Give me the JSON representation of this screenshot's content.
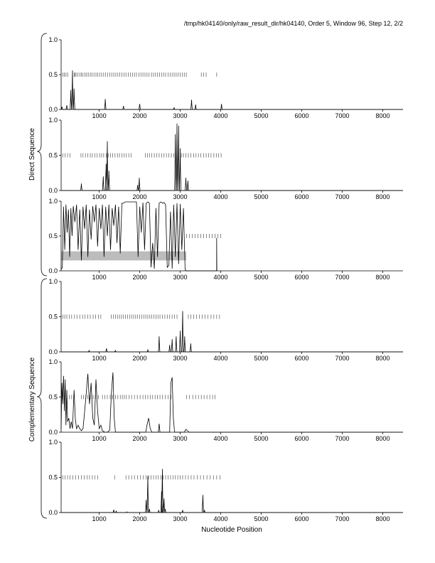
{
  "header": "/tmp/hk04140/only/raw_result_dir/hk04140, Order 5, Window 96, Step 12, 2/2",
  "group_labels": {
    "top": "Direct Sequence",
    "bottom": "Complementary Sequence"
  },
  "xlabel": "Nucleotide Position",
  "colors": {
    "line": "#000000",
    "band": "#bcbcbc",
    "marker": "#555555"
  },
  "chart_data": [
    {
      "type": "line",
      "xlim": [
        60,
        8500
      ],
      "ylim": [
        0,
        1
      ],
      "x_ticks": [
        1000,
        2000,
        3000,
        4000,
        5000,
        6000,
        7000,
        8000
      ],
      "y_ticks": [
        "0.0",
        "0.5",
        "1.0"
      ],
      "markers": [
        100,
        140,
        180,
        220,
        380,
        400,
        430,
        470,
        520,
        560,
        600,
        650,
        690,
        730,
        780,
        820,
        870,
        920,
        960,
        1010,
        1060,
        1110,
        1160,
        1210,
        1260,
        1310,
        1360,
        1410,
        1460,
        1510,
        1560,
        1610,
        1660,
        1720,
        1770,
        1820,
        1870,
        1920,
        1980,
        2030,
        2080,
        2130,
        2180,
        2230,
        2290,
        2340,
        2390,
        2440,
        2490,
        2540,
        2590,
        2640,
        2700,
        2750,
        2800,
        2850,
        2900,
        2950,
        3000,
        3050,
        3100,
        3150,
        3520,
        3580,
        3640,
        3900
      ],
      "peaks": [
        [
          80,
          0.04
        ],
        [
          200,
          0.06
        ],
        [
          300,
          0.28
        ],
        [
          340,
          0.56
        ],
        [
          380,
          0.3
        ],
        [
          1150,
          0.15
        ],
        [
          1600,
          0.05
        ],
        [
          2000,
          0.08
        ],
        [
          2850,
          0.03
        ],
        [
          3280,
          0.14
        ],
        [
          3380,
          0.07
        ],
        [
          4020,
          0.08
        ]
      ]
    },
    {
      "type": "line",
      "xlim": [
        60,
        8500
      ],
      "ylim": [
        0,
        1
      ],
      "x_ticks": [
        1000,
        2000,
        3000,
        4000,
        5000,
        6000,
        7000,
        8000
      ],
      "y_ticks": [
        "0.0",
        "0.5",
        "1.0"
      ],
      "markers": [
        100,
        160,
        220,
        280,
        550,
        600,
        660,
        720,
        780,
        830,
        890,
        950,
        1010,
        1060,
        1110,
        1170,
        1220,
        1280,
        1330,
        1390,
        1450,
        1500,
        1560,
        1610,
        1670,
        1730,
        1790,
        2140,
        2190,
        2240,
        2300,
        2360,
        2420,
        2480,
        2540,
        2600,
        2660,
        2720,
        2780,
        2840,
        3030,
        3080,
        3140,
        3200,
        3260,
        3330,
        3390,
        3450,
        3510,
        3580,
        3640,
        3700,
        3760,
        3830,
        3890,
        3950,
        4010
      ],
      "peaks": [
        [
          560,
          0.1
        ],
        [
          1100,
          0.2
        ],
        [
          1170,
          0.38
        ],
        [
          1200,
          0.7
        ],
        [
          1240,
          0.28
        ],
        [
          1950,
          0.08
        ],
        [
          1990,
          0.18
        ],
        [
          2880,
          0.8
        ],
        [
          2920,
          0.95
        ],
        [
          2960,
          0.92
        ],
        [
          3000,
          0.6
        ],
        [
          3140,
          0.18
        ],
        [
          3190,
          0.14
        ]
      ]
    },
    {
      "type": "line",
      "xlim": [
        60,
        8500
      ],
      "ylim": [
        0,
        1
      ],
      "x_ticks": [
        1000,
        2000,
        3000,
        4000,
        5000,
        6000,
        7000,
        8000
      ],
      "y_ticks": [
        "0.0",
        "0.5",
        "1.0"
      ],
      "markers": [
        3160,
        3230,
        3300,
        3370,
        3440,
        3510,
        3580,
        3650,
        3720,
        3790,
        3860,
        3930,
        4000
      ],
      "band": [
        0.15,
        0.28,
        60,
        3150
      ],
      "line": [
        [
          60,
          0.02
        ],
        [
          90,
          0.05
        ],
        [
          120,
          0.92
        ],
        [
          150,
          0.3
        ],
        [
          180,
          0.95
        ],
        [
          210,
          0.55
        ],
        [
          240,
          0.88
        ],
        [
          270,
          0.2
        ],
        [
          300,
          0.9
        ],
        [
          330,
          0.5
        ],
        [
          360,
          0.93
        ],
        [
          400,
          0.7
        ],
        [
          440,
          0.95
        ],
        [
          480,
          0.3
        ],
        [
          520,
          0.88
        ],
        [
          560,
          0.15
        ],
        [
          600,
          0.92
        ],
        [
          640,
          0.6
        ],
        [
          680,
          0.95
        ],
        [
          720,
          0.2
        ],
        [
          760,
          0.88
        ],
        [
          800,
          0.45
        ],
        [
          840,
          0.93
        ],
        [
          880,
          0.7
        ],
        [
          920,
          0.95
        ],
        [
          960,
          0.35
        ],
        [
          1000,
          0.9
        ],
        [
          1040,
          0.6
        ],
        [
          1080,
          0.95
        ],
        [
          1120,
          0.2
        ],
        [
          1160,
          0.92
        ],
        [
          1200,
          0.5
        ],
        [
          1240,
          0.95
        ],
        [
          1280,
          0.3
        ],
        [
          1320,
          0.9
        ],
        [
          1360,
          0.65
        ],
        [
          1400,
          0.95
        ],
        [
          1440,
          0.4
        ],
        [
          1480,
          0.92
        ],
        [
          1520,
          0.25
        ],
        [
          1560,
          0.97
        ],
        [
          1600,
          0.97
        ],
        [
          1640,
          0.99
        ],
        [
          1700,
          0.99
        ],
        [
          1760,
          0.99
        ],
        [
          1820,
          0.99
        ],
        [
          1880,
          0.99
        ],
        [
          1920,
          0.99
        ],
        [
          1960,
          0.2
        ],
        [
          2000,
          0.92
        ],
        [
          2040,
          0.55
        ],
        [
          2080,
          0.98
        ],
        [
          2120,
          0.3
        ],
        [
          2160,
          0.97
        ],
        [
          2200,
          0.99
        ],
        [
          2240,
          0.97
        ],
        [
          2280,
          0.05
        ],
        [
          2320,
          0.4
        ],
        [
          2360,
          0.03
        ],
        [
          2400,
          0.9
        ],
        [
          2440,
          0.2
        ],
        [
          2480,
          0.97
        ],
        [
          2520,
          0.99
        ],
        [
          2560,
          0.97
        ],
        [
          2600,
          0.98
        ],
        [
          2640,
          0.95
        ],
        [
          2680,
          0.05
        ],
        [
          2720,
          0.08
        ],
        [
          2760,
          0.85
        ],
        [
          2800,
          0.03
        ],
        [
          2840,
          0.95
        ],
        [
          2880,
          0.2
        ],
        [
          2920,
          0.97
        ],
        [
          2960,
          0.1
        ],
        [
          3000,
          0.96
        ],
        [
          3040,
          0.3
        ],
        [
          3080,
          0.9
        ],
        [
          3120,
          0.02
        ],
        [
          3150,
          0.0
        ],
        [
          3180,
          0.0
        ],
        [
          3900,
          0.0
        ],
        [
          3900,
          0.47
        ],
        [
          3905,
          0.0
        ]
      ]
    },
    {
      "type": "line",
      "xlim": [
        60,
        8500
      ],
      "ylim": [
        0,
        1
      ],
      "x_ticks": [
        1000,
        2000,
        3000,
        4000,
        5000,
        6000,
        7000,
        8000
      ],
      "y_ticks": [
        "0.0",
        "0.5",
        "1.0"
      ],
      "markers": [
        100,
        150,
        200,
        260,
        320,
        390,
        450,
        520,
        590,
        650,
        720,
        780,
        850,
        910,
        980,
        1040,
        1300,
        1350,
        1400,
        1450,
        1500,
        1550,
        1600,
        1650,
        1700,
        1750,
        1800,
        1850,
        1900,
        1950,
        2000,
        2050,
        2100,
        2150,
        2200,
        2250,
        2300,
        2350,
        2400,
        2450,
        2500,
        2560,
        2620,
        2680,
        2740,
        2800,
        2860,
        2920,
        3200,
        3260,
        3330,
        3400,
        3470,
        3540,
        3610,
        3680,
        3760,
        3830,
        3900,
        3970
      ],
      "peaks": [
        [
          750,
          0.02
        ],
        [
          1180,
          0.05
        ],
        [
          1400,
          0.02
        ],
        [
          2200,
          0.03
        ],
        [
          2480,
          0.22
        ],
        [
          2740,
          0.1
        ],
        [
          2800,
          0.18
        ],
        [
          2900,
          0.22
        ],
        [
          3000,
          0.3
        ],
        [
          3060,
          0.58
        ],
        [
          3110,
          0.22
        ],
        [
          3260,
          0.12
        ]
      ]
    },
    {
      "type": "line",
      "xlim": [
        60,
        8500
      ],
      "ylim": [
        0,
        1
      ],
      "x_ticks": [
        1000,
        2000,
        3000,
        4000,
        5000,
        6000,
        7000,
        8000
      ],
      "y_ticks": [
        "0.0",
        "0.5",
        "1.0"
      ],
      "markers": [
        100,
        150,
        200,
        260,
        320,
        560,
        610,
        670,
        720,
        780,
        850,
        910,
        980,
        1080,
        1140,
        1200,
        1270,
        1330,
        1400,
        1460,
        1520,
        1570,
        1620,
        1670,
        1740,
        1800,
        1870,
        1940,
        2010,
        2080,
        2140,
        2200,
        2260,
        2320,
        2380,
        2440,
        2500,
        2560,
        2630,
        2700,
        2770,
        3160,
        3230,
        3310,
        3380,
        3450,
        3520,
        3590,
        3660,
        3730,
        3800,
        3860
      ],
      "line": [
        [
          60,
          0.05
        ],
        [
          80,
          0.7
        ],
        [
          100,
          0.4
        ],
        [
          120,
          0.8
        ],
        [
          140,
          0.3
        ],
        [
          160,
          0.75
        ],
        [
          180,
          0.1
        ],
        [
          200,
          0.6
        ],
        [
          220,
          0.15
        ],
        [
          250,
          0.2
        ],
        [
          280,
          0.05
        ],
        [
          310,
          0.15
        ],
        [
          340,
          0.05
        ],
        [
          380,
          0.6
        ],
        [
          410,
          0.2
        ],
        [
          440,
          0.05
        ],
        [
          480,
          0.1
        ],
        [
          520,
          0.05
        ],
        [
          560,
          0.02
        ],
        [
          600,
          0.05
        ],
        [
          640,
          0.3
        ],
        [
          680,
          0.55
        ],
        [
          720,
          0.83
        ],
        [
          760,
          0.4
        ],
        [
          800,
          0.7
        ],
        [
          840,
          0.2
        ],
        [
          880,
          0.1
        ],
        [
          920,
          0.75
        ],
        [
          960,
          0.3
        ],
        [
          1000,
          0.05
        ],
        [
          1040,
          0.1
        ],
        [
          1080,
          0.02
        ],
        [
          1140,
          0.0
        ],
        [
          1200,
          0.0
        ],
        [
          1260,
          0.03
        ],
        [
          1300,
          0.55
        ],
        [
          1340,
          0.85
        ],
        [
          1370,
          0.2
        ],
        [
          1400,
          0.0
        ],
        [
          1500,
          0.0
        ],
        [
          1800,
          0.0
        ],
        [
          2150,
          0.0
        ],
        [
          2180,
          0.1
        ],
        [
          2220,
          0.2
        ],
        [
          2260,
          0.05
        ],
        [
          2300,
          0.0
        ],
        [
          2460,
          0.0
        ],
        [
          2480,
          0.12
        ],
        [
          2500,
          0.0
        ],
        [
          2740,
          0.0
        ],
        [
          2770,
          0.7
        ],
        [
          2800,
          0.78
        ],
        [
          2830,
          0.2
        ],
        [
          2860,
          0.0
        ],
        [
          3100,
          0.0
        ],
        [
          3140,
          0.04
        ],
        [
          3180,
          0.02
        ],
        [
          3220,
          0.0
        ],
        [
          8500,
          0.0
        ]
      ]
    },
    {
      "type": "line",
      "xlim": [
        60,
        8500
      ],
      "ylim": [
        0,
        1
      ],
      "x_ticks": [
        1000,
        2000,
        3000,
        4000,
        5000,
        6000,
        7000,
        8000
      ],
      "y_ticks": [
        "0.0",
        "0.5",
        "1.0"
      ],
      "markers": [
        100,
        160,
        220,
        280,
        350,
        420,
        490,
        560,
        630,
        700,
        760,
        830,
        890,
        960,
        1380,
        1660,
        1730,
        1800,
        1870,
        1950,
        2020,
        2090,
        2160,
        2220,
        2280,
        2340,
        2400,
        2460,
        2520,
        2580,
        2640,
        2700,
        2760,
        2820,
        2880,
        2940,
        3000,
        3060,
        3130,
        3200,
        3270,
        3340,
        3420,
        3500,
        3580,
        3660,
        3740,
        3820,
        3900,
        3980
      ],
      "peaks": [
        [
          1360,
          0.04
        ],
        [
          1420,
          0.02
        ],
        [
          1680,
          0.01
        ],
        [
          2160,
          0.18
        ],
        [
          2200,
          0.52
        ],
        [
          2240,
          0.05
        ],
        [
          2470,
          0.03
        ],
        [
          2540,
          0.3
        ],
        [
          2560,
          0.62
        ],
        [
          2600,
          0.2
        ],
        [
          2630,
          0.05
        ],
        [
          3060,
          0.03
        ],
        [
          3560,
          0.25
        ],
        [
          3600,
          0.03
        ]
      ]
    }
  ]
}
